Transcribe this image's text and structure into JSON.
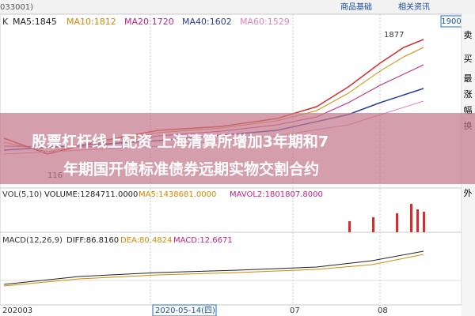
{
  "header": {
    "code": "033001)",
    "tabs": [
      "商品基础",
      "相关资讯"
    ],
    "price_box": "1900"
  },
  "main_legend": {
    "k": "K",
    "ma5": "MA5:1845",
    "ma10": "MA10:1812",
    "ma20": "MA20:1720",
    "ma40": "MA40:1602",
    "ma60": "MA60:1529"
  },
  "annotations": {
    "high": "1877",
    "low": "116"
  },
  "sidebar": [
    "卖",
    "买",
    "最",
    "涨",
    "幅",
    "换",
    "外"
  ],
  "banner": {
    "line1": "股票杠杆线上配资   上海清算所增加3年期和7",
    "line2": "年期国开债标准债券远期实物交割合约"
  },
  "volume_legend": {
    "name": "VOL(5,10)",
    "volume": "VOLUME:1284711.0000",
    "ma5": "MA5:1438681.0000",
    "mavol2": "MAVOL2:1801807.8000"
  },
  "macd_legend": {
    "name": "MACD(12,26,9)",
    "diff": "DIFF:86.8160",
    "dea": "DEA:80.4824",
    "macd": "MACD:12.6671"
  },
  "x_labels": [
    "202003",
    "2020-05-14(四)",
    "07",
    "08"
  ]
}
